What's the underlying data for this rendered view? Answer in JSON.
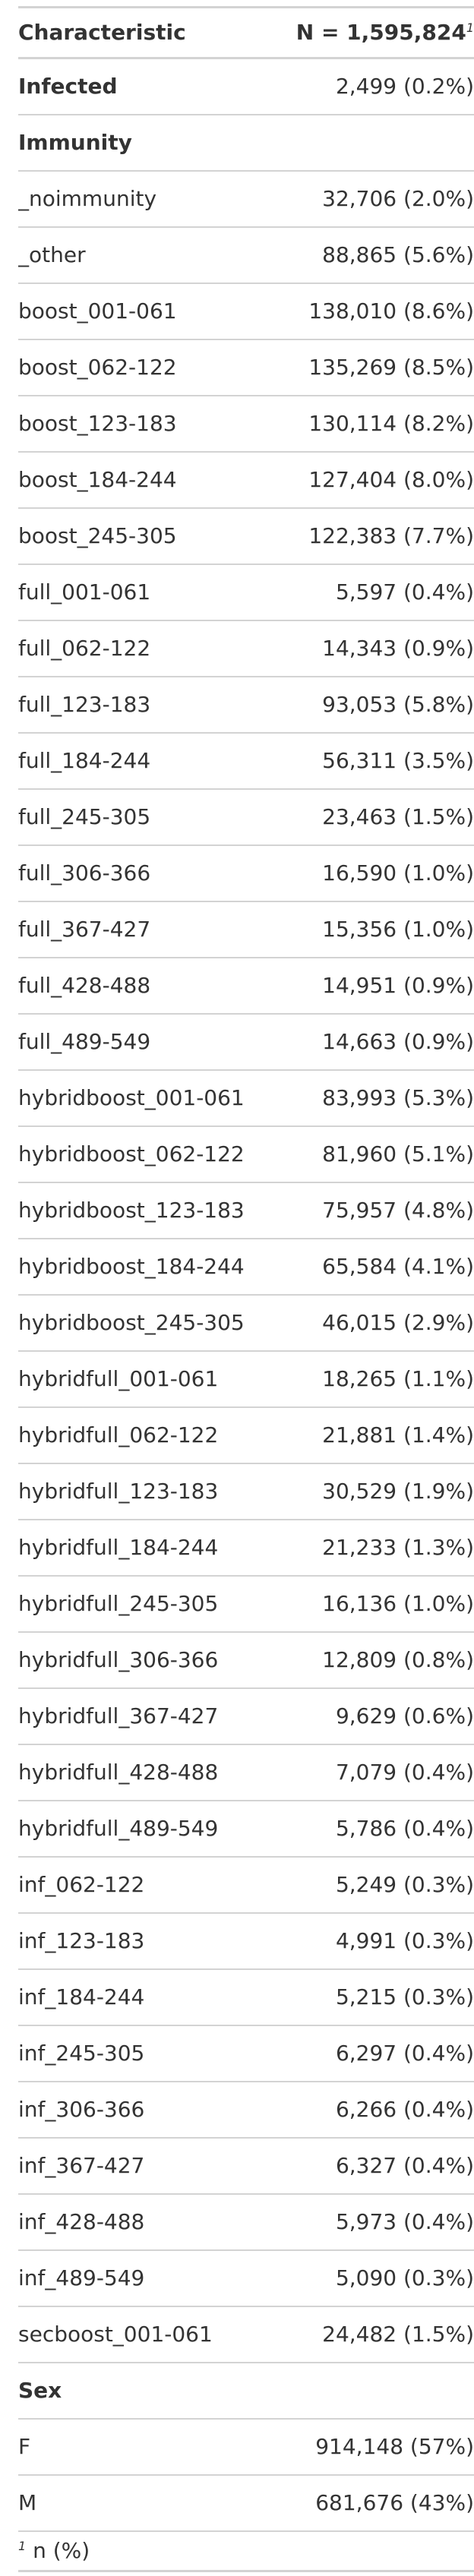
{
  "table": {
    "header": {
      "characteristic": "Characteristic",
      "n": "N = 1,595,824",
      "footnote_marker": "1"
    },
    "groups": [
      {
        "label": "Infected",
        "value": "2,499 (0.2%)"
      },
      {
        "label": "Immunity",
        "value": ""
      },
      {
        "label": "_noimmunity",
        "value": "32,706 (2.0%)"
      },
      {
        "label": "_other",
        "value": "88,865 (5.6%)"
      },
      {
        "label": "boost_001-061",
        "value": "138,010 (8.6%)"
      },
      {
        "label": "boost_062-122",
        "value": "135,269 (8.5%)"
      },
      {
        "label": "boost_123-183",
        "value": "130,114 (8.2%)"
      },
      {
        "label": "boost_184-244",
        "value": "127,404 (8.0%)"
      },
      {
        "label": "boost_245-305",
        "value": "122,383 (7.7%)"
      },
      {
        "label": "full_001-061",
        "value": "5,597 (0.4%)"
      },
      {
        "label": "full_062-122",
        "value": "14,343 (0.9%)"
      },
      {
        "label": "full_123-183",
        "value": "93,053 (5.8%)"
      },
      {
        "label": "full_184-244",
        "value": "56,311 (3.5%)"
      },
      {
        "label": "full_245-305",
        "value": "23,463 (1.5%)"
      },
      {
        "label": "full_306-366",
        "value": "16,590 (1.0%)"
      },
      {
        "label": "full_367-427",
        "value": "15,356 (1.0%)"
      },
      {
        "label": "full_428-488",
        "value": "14,951 (0.9%)"
      },
      {
        "label": "full_489-549",
        "value": "14,663 (0.9%)"
      },
      {
        "label": "hybridboost_001-061",
        "value": "83,993 (5.3%)"
      },
      {
        "label": "hybridboost_062-122",
        "value": "81,960 (5.1%)"
      },
      {
        "label": "hybridboost_123-183",
        "value": "75,957 (4.8%)"
      },
      {
        "label": "hybridboost_184-244",
        "value": "65,584 (4.1%)"
      },
      {
        "label": "hybridboost_245-305",
        "value": "46,015 (2.9%)"
      },
      {
        "label": "hybridfull_001-061",
        "value": "18,265 (1.1%)"
      },
      {
        "label": "hybridfull_062-122",
        "value": "21,881 (1.4%)"
      },
      {
        "label": "hybridfull_123-183",
        "value": "30,529 (1.9%)"
      },
      {
        "label": "hybridfull_184-244",
        "value": "21,233 (1.3%)"
      },
      {
        "label": "hybridfull_245-305",
        "value": "16,136 (1.0%)"
      },
      {
        "label": "hybridfull_306-366",
        "value": "12,809 (0.8%)"
      },
      {
        "label": "hybridfull_367-427",
        "value": "9,629 (0.6%)"
      },
      {
        "label": "hybridfull_428-488",
        "value": "7,079 (0.4%)"
      },
      {
        "label": "hybridfull_489-549",
        "value": "5,786 (0.4%)"
      },
      {
        "label": "inf_062-122",
        "value": "5,249 (0.3%)"
      },
      {
        "label": "inf_123-183",
        "value": "4,991 (0.3%)"
      },
      {
        "label": "inf_184-244",
        "value": "5,215 (0.3%)"
      },
      {
        "label": "inf_245-305",
        "value": "6,297 (0.4%)"
      },
      {
        "label": "inf_306-366",
        "value": "6,266 (0.4%)"
      },
      {
        "label": "inf_367-427",
        "value": "6,327 (0.4%)"
      },
      {
        "label": "inf_428-488",
        "value": "5,973 (0.4%)"
      },
      {
        "label": "inf_489-549",
        "value": "5,090 (0.3%)"
      },
      {
        "label": "secboost_001-061",
        "value": "24,482 (1.5%)"
      },
      {
        "label": "Sex",
        "value": ""
      },
      {
        "label": "F",
        "value": "914,148 (57%)"
      },
      {
        "label": "M",
        "value": "681,676 (43%)"
      }
    ],
    "footnote": {
      "marker": "1",
      "text": " n (%)"
    }
  }
}
